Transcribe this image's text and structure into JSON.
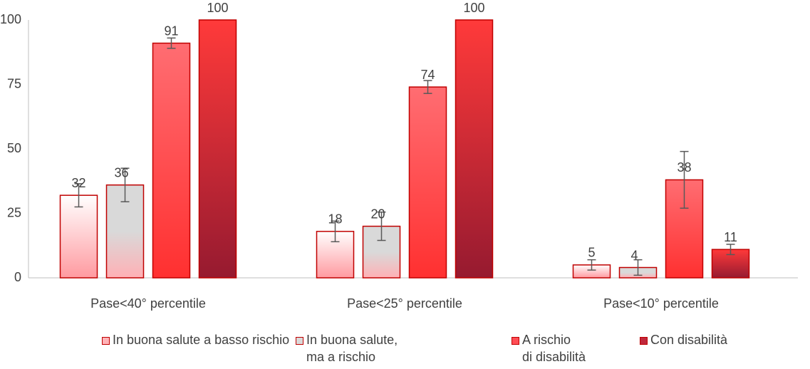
{
  "chart_data": {
    "type": "bar",
    "categories": [
      "Pase<40° percentile",
      "Pase<25°  percentile",
      "Pase<10° percentile"
    ],
    "series": [
      {
        "name": "In buona salute a basso rischio",
        "color": "#ffb3b8",
        "values": [
          32,
          18,
          5
        ],
        "errors": [
          4.5,
          4,
          2
        ]
      },
      {
        "name": "In buona salute,\nma a rischio",
        "color": "#d9d9d9",
        "values": [
          36,
          20,
          4
        ],
        "errors": [
          6.5,
          5.5,
          3
        ]
      },
      {
        "name": "A rischio\ndi disabilità",
        "color": "#ff4d55",
        "values": [
          91,
          74,
          38
        ],
        "errors": [
          2,
          2.5,
          11
        ]
      },
      {
        "name": "Con disabilità",
        "color": "#c0283c",
        "values": [
          100,
          100,
          11
        ],
        "errors": [
          null,
          null,
          2
        ]
      }
    ],
    "ylim": [
      0,
      100
    ],
    "yticks": [
      0,
      25,
      50,
      75,
      100
    ],
    "grid": false,
    "legend": "bottom"
  }
}
